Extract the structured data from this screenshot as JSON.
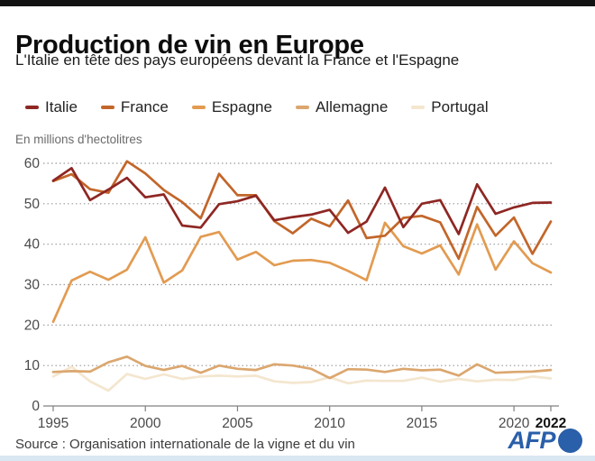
{
  "header": {
    "title": "Production de vin en Europe",
    "subtitle": "L'Italie en tête des pays européens devant la France et l'Espagne"
  },
  "chart_data": {
    "type": "line",
    "title": "Production de vin en Europe",
    "unit_label": "En millions d'hectolitres",
    "x": [
      1995,
      1996,
      1997,
      1998,
      1999,
      2000,
      2001,
      2002,
      2003,
      2004,
      2005,
      2006,
      2007,
      2008,
      2009,
      2010,
      2011,
      2012,
      2013,
      2014,
      2015,
      2016,
      2017,
      2018,
      2019,
      2020,
      2021,
      2022
    ],
    "x_ticks": [
      1995,
      2000,
      2005,
      2010,
      2015,
      2020,
      2022
    ],
    "emphasized_tick": 2022,
    "y_ticks": [
      0,
      10,
      20,
      30,
      40,
      50,
      60
    ],
    "ylim": [
      0,
      62
    ],
    "grid": "horizontal-dotted",
    "legend_position": "top",
    "series": [
      {
        "name": "Italie",
        "color": "#8e2723",
        "values": [
          55.7,
          58.8,
          50.9,
          53.5,
          56.4,
          51.6,
          52.3,
          44.6,
          44.1,
          49.9,
          50.6,
          52.0,
          45.9,
          46.7,
          47.3,
          48.5,
          42.8,
          45.6,
          54.0,
          44.2,
          50.0,
          50.9,
          42.5,
          54.8,
          47.5,
          49.1,
          50.2,
          50.3
        ]
      },
      {
        "name": "France",
        "color": "#c2662a",
        "values": [
          55.6,
          57.3,
          53.6,
          52.7,
          60.5,
          57.5,
          53.4,
          50.4,
          46.4,
          57.4,
          52.1,
          52.1,
          45.7,
          42.7,
          46.3,
          44.4,
          50.8,
          41.5,
          42.1,
          46.5,
          47.0,
          45.4,
          36.4,
          49.2,
          42.1,
          46.6,
          37.6,
          45.6
        ]
      },
      {
        "name": "Espagne",
        "color": "#e29b51",
        "values": [
          20.8,
          31.0,
          33.2,
          31.2,
          33.7,
          41.7,
          30.5,
          33.5,
          41.8,
          43.0,
          36.2,
          38.1,
          34.8,
          35.9,
          36.1,
          35.4,
          33.4,
          31.1,
          45.3,
          39.5,
          37.7,
          39.7,
          32.5,
          44.9,
          33.7,
          40.7,
          35.3,
          33.0
        ]
      },
      {
        "name": "Allemagne",
        "color": "#dba76f",
        "values": [
          8.4,
          8.6,
          8.5,
          10.8,
          12.2,
          9.9,
          8.9,
          9.9,
          8.2,
          10.0,
          9.2,
          8.9,
          10.3,
          10.0,
          9.2,
          6.9,
          9.1,
          9.0,
          8.4,
          9.2,
          8.8,
          9.0,
          7.5,
          10.3,
          8.2,
          8.4,
          8.5,
          8.9
        ]
      },
      {
        "name": "Portugal",
        "color": "#f4e6cf",
        "values": [
          7.3,
          9.7,
          6.1,
          3.8,
          7.9,
          6.7,
          7.8,
          6.7,
          7.3,
          7.5,
          7.3,
          7.5,
          6.1,
          5.7,
          5.9,
          7.1,
          5.6,
          6.3,
          6.2,
          6.2,
          7.0,
          6.0,
          6.7,
          6.1,
          6.5,
          6.4,
          7.3,
          6.8
        ]
      }
    ],
    "draw_order": [
      "Portugal",
      "Allemagne",
      "Espagne",
      "France",
      "Italie"
    ]
  },
  "footer": {
    "source": "Source : Organisation internationale de la vigne et du vin",
    "logo": "AFP"
  },
  "colors": {
    "afp_blue": "#2a5fa9",
    "top_bar": "#121212",
    "bottom_strip": "#d9e7f3",
    "grid": "#9a9a9a",
    "axis": "#808080",
    "tick_label": "#4a4a4a",
    "tick_label_bold": "#111111"
  }
}
